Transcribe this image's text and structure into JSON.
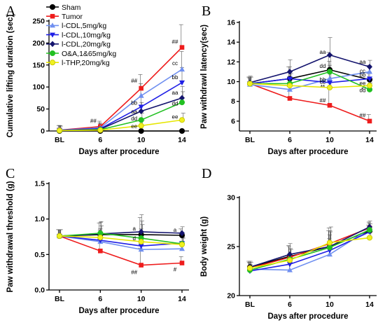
{
  "colors": {
    "sham": "#000000",
    "tumor": "#ee1c1c",
    "cdl5": "#6f8ff0",
    "cdl10": "#1f1fe6",
    "cdl20": "#14146e",
    "oa": "#22c022",
    "thp": "#f0f020"
  },
  "legend": [
    {
      "label": "Sham",
      "color": "#000000",
      "marker": "circle",
      "fill": "#000000"
    },
    {
      "label": "Tumor",
      "color": "#ee1c1c",
      "marker": "square",
      "fill": "#ee1c1c"
    },
    {
      "label": "l-CDL,5mg/kg",
      "color": "#6f8ff0",
      "marker": "triangle-up",
      "fill": "#6f8ff0"
    },
    {
      "label": "l-CDL,10mg/kg",
      "color": "#1f1fe6",
      "marker": "triangle-down",
      "fill": "#1f1fe6"
    },
    {
      "label": "l-CDL,20mg/kg",
      "color": "#14146e",
      "marker": "diamond",
      "fill": "#14146e"
    },
    {
      "label": "O&A,1&65mg/kg",
      "color": "#22c022",
      "marker": "circle",
      "fill": "#22c022"
    },
    {
      "label": "l-THP,20mg/kg",
      "color": "#c8c800",
      "marker": "circle",
      "fill": "#f0f020"
    }
  ],
  "chart_data": [
    {
      "panel": "A",
      "type": "line",
      "categories": [
        "BL",
        "6",
        "10",
        "14"
      ],
      "xlabel": "Days after procedure",
      "ylabel": "Cumulative lifting duration (sec)",
      "ylim": [
        0,
        250
      ],
      "yticks": [
        0,
        50,
        100,
        150,
        200,
        250
      ],
      "series": [
        {
          "name": "Sham",
          "values": [
            0,
            0,
            0,
            0
          ]
        },
        {
          "name": "Tumor",
          "values": [
            2,
            10,
            97,
            190
          ]
        },
        {
          "name": "l-CDL,5mg/kg",
          "values": [
            2,
            7,
            80,
            140
          ]
        },
        {
          "name": "l-CDL,10mg/kg",
          "values": [
            2,
            5,
            55,
            110
          ]
        },
        {
          "name": "l-CDL,20mg/kg",
          "values": [
            1,
            4,
            45,
            75
          ]
        },
        {
          "name": "O&A,1&65mg/kg",
          "values": [
            1,
            3,
            25,
            65
          ]
        },
        {
          "name": "l-THP,20mg/kg",
          "values": [
            1,
            2,
            12,
            25
          ]
        }
      ],
      "annotations": [
        {
          "text": "##",
          "x": "6",
          "y": 18
        },
        {
          "text": "##",
          "x": "10",
          "y": 110
        },
        {
          "text": "##",
          "x": "14",
          "y": 198
        },
        {
          "text": "cc",
          "x": "14",
          "y": 150
        },
        {
          "text": "bb",
          "x": "14",
          "y": 118
        },
        {
          "text": "aa",
          "x": "14",
          "y": 83
        },
        {
          "text": "dd",
          "x": "14",
          "y": 58
        },
        {
          "text": "ee",
          "x": "14",
          "y": 28
        },
        {
          "text": "bb",
          "x": "10",
          "y": 60
        },
        {
          "text": "aa",
          "x": "10",
          "y": 40
        },
        {
          "text": "dd",
          "x": "10",
          "y": 24
        },
        {
          "text": "ee",
          "x": "10",
          "y": 6
        }
      ]
    },
    {
      "panel": "B",
      "type": "line",
      "categories": [
        "BL",
        "6",
        "10",
        "14"
      ],
      "xlabel": "Days after procedure",
      "ylabel": "Paw withdrawl latency(sec)",
      "ylim": [
        5,
        16
      ],
      "yticks": [
        6,
        8,
        10,
        12,
        14,
        16
      ],
      "series": [
        {
          "name": "Sham",
          "values": [
            9.8,
            10.3,
            11.2,
            10.2
          ]
        },
        {
          "name": "Tumor",
          "values": [
            9.8,
            8.3,
            7.6,
            6.0
          ]
        },
        {
          "name": "l-CDL,5mg/kg",
          "values": [
            9.7,
            9.2,
            10.3,
            11.0
          ]
        },
        {
          "name": "l-CDL,10mg/kg",
          "values": [
            9.8,
            10.3,
            9.9,
            10.3
          ]
        },
        {
          "name": "l-CDL,20mg/kg",
          "values": [
            9.9,
            11.0,
            12.7,
            11.5
          ]
        },
        {
          "name": "O&A,1&65mg/kg",
          "values": [
            9.8,
            9.8,
            11.0,
            9.2
          ]
        },
        {
          "name": "l-THP,20mg/kg",
          "values": [
            9.8,
            9.6,
            9.4,
            9.6
          ]
        }
      ],
      "annotations": [
        {
          "text": "aa",
          "x": "10",
          "y": 12.8
        },
        {
          "text": "bb",
          "x": "10",
          "y": 10.0
        },
        {
          "text": "cc",
          "x": "10",
          "y": 9.75
        },
        {
          "text": "**",
          "x": "10",
          "y": 9.25
        },
        {
          "text": "##",
          "x": "10",
          "y": 7.9
        },
        {
          "text": "aa",
          "x": "14",
          "y": 11.8
        },
        {
          "text": "cc",
          "x": "14",
          "y": 10.9
        },
        {
          "text": "bb",
          "x": "14",
          "y": 10.5
        },
        {
          "text": "ee",
          "x": "14",
          "y": 9.65
        },
        {
          "text": "dd",
          "x": "14",
          "y": 8.95
        },
        {
          "text": "*",
          "x": "14",
          "y": 9.0
        },
        {
          "text": "##",
          "x": "14",
          "y": 6.4
        },
        {
          "text": "dd",
          "x": "10",
          "y": 11.4
        }
      ]
    },
    {
      "panel": "C",
      "type": "line",
      "categories": [
        "BL",
        "6",
        "10",
        "14"
      ],
      "xlabel": "Days after procedure",
      "ylabel": "Paw withdrawal threshold (g)",
      "ylim": [
        0,
        1.5
      ],
      "yticks": [
        0.0,
        0.5,
        1.0,
        1.5
      ],
      "series": [
        {
          "name": "Sham",
          "values": [
            0.76,
            0.78,
            0.78,
            0.77
          ]
        },
        {
          "name": "Tumor",
          "values": [
            0.76,
            0.55,
            0.35,
            0.38
          ]
        },
        {
          "name": "l-CDL,5mg/kg",
          "values": [
            0.76,
            0.68,
            0.57,
            0.58
          ]
        },
        {
          "name": "l-CDL,10mg/kg",
          "values": [
            0.76,
            0.7,
            0.62,
            0.66
          ]
        },
        {
          "name": "l-CDL,20mg/kg",
          "values": [
            0.76,
            0.79,
            0.82,
            0.8
          ]
        },
        {
          "name": "O&A,1&65mg/kg",
          "values": [
            0.76,
            0.8,
            0.73,
            0.65
          ]
        },
        {
          "name": "l-THP,20mg/kg",
          "values": [
            0.76,
            0.74,
            0.68,
            0.64
          ]
        }
      ],
      "annotations": [
        {
          "text": "a",
          "x": "10",
          "y": 0.84
        },
        {
          "text": "a",
          "x": "14",
          "y": 0.82
        },
        {
          "text": "d",
          "x": "10",
          "y": 0.7
        },
        {
          "text": "##",
          "x": "10",
          "y": 0.22
        },
        {
          "text": "#",
          "x": "14",
          "y": 0.26
        }
      ]
    },
    {
      "panel": "D",
      "type": "line",
      "categories": [
        "BL",
        "6",
        "10",
        "14"
      ],
      "xlabel": "Days after procedure",
      "ylabel": "Body weight  (g)",
      "ylim": [
        20,
        30
      ],
      "yticks": [
        20,
        25,
        30
      ],
      "series": [
        {
          "name": "Sham",
          "values": [
            22.9,
            24.0,
            25.0,
            26.6
          ]
        },
        {
          "name": "Tumor",
          "values": [
            22.8,
            23.9,
            25.3,
            26.9
          ]
        },
        {
          "name": "l-CDL,5mg/kg",
          "values": [
            22.7,
            22.6,
            24.2,
            26.8
          ]
        },
        {
          "name": "l-CDL,10mg/kg",
          "values": [
            22.5,
            23.2,
            24.6,
            26.5
          ]
        },
        {
          "name": "l-CDL,20mg/kg",
          "values": [
            22.9,
            24.2,
            25.0,
            27.0
          ]
        },
        {
          "name": "O&A,1&65mg/kg",
          "values": [
            22.6,
            23.7,
            24.9,
            26.7
          ]
        },
        {
          "name": "l-THP,20mg/kg",
          "values": [
            22.8,
            23.6,
            25.4,
            25.9
          ]
        }
      ]
    }
  ]
}
